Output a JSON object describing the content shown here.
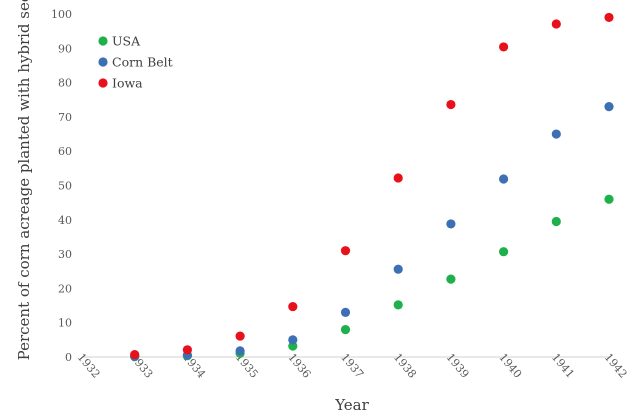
{
  "chart_data": {
    "type": "scatter",
    "title": "",
    "xlabel": "Year",
    "ylabel": "Percent of corn acreage planted with hybrid seed",
    "xlim": [
      1932,
      1942
    ],
    "ylim": [
      0,
      100
    ],
    "x_ticks": [
      "1932",
      "1933",
      "1934",
      "1935",
      "1936",
      "1937",
      "1938",
      "1939",
      "1940",
      "1941",
      "1942"
    ],
    "y_ticks": [
      "0",
      "10",
      "20",
      "30",
      "40",
      "50",
      "60",
      "70",
      "80",
      "90",
      "100"
    ],
    "grid": false,
    "legend": "top-left",
    "series": [
      {
        "name": "USA",
        "color": "#1eb04a",
        "points": [
          {
            "x": 1933,
            "y": 0.1
          },
          {
            "x": 1934,
            "y": 0.4
          },
          {
            "x": 1935,
            "y": 1.1
          },
          {
            "x": 1936,
            "y": 3.2
          },
          {
            "x": 1937,
            "y": 8.0
          },
          {
            "x": 1938,
            "y": 15.2
          },
          {
            "x": 1939,
            "y": 22.7
          },
          {
            "x": 1940,
            "y": 30.7
          },
          {
            "x": 1941,
            "y": 39.5
          },
          {
            "x": 1942,
            "y": 46.0
          }
        ]
      },
      {
        "name": "Corn Belt",
        "color": "#3d6fb4",
        "points": [
          {
            "x": 1933,
            "y": 0.2
          },
          {
            "x": 1934,
            "y": 0.6
          },
          {
            "x": 1935,
            "y": 1.8
          },
          {
            "x": 1936,
            "y": 5.0
          },
          {
            "x": 1937,
            "y": 13.0
          },
          {
            "x": 1938,
            "y": 25.6
          },
          {
            "x": 1939,
            "y": 38.8
          },
          {
            "x": 1940,
            "y": 51.9
          },
          {
            "x": 1941,
            "y": 65.0
          },
          {
            "x": 1942,
            "y": 73.0
          }
        ]
      },
      {
        "name": "Iowa",
        "color": "#e8101a",
        "points": [
          {
            "x": 1933,
            "y": 0.7
          },
          {
            "x": 1934,
            "y": 2.1
          },
          {
            "x": 1935,
            "y": 6.1
          },
          {
            "x": 1936,
            "y": 14.7
          },
          {
            "x": 1937,
            "y": 31.0
          },
          {
            "x": 1938,
            "y": 52.2
          },
          {
            "x": 1939,
            "y": 73.6
          },
          {
            "x": 1940,
            "y": 90.4
          },
          {
            "x": 1941,
            "y": 97.1
          },
          {
            "x": 1942,
            "y": 99.0
          }
        ]
      }
    ]
  }
}
